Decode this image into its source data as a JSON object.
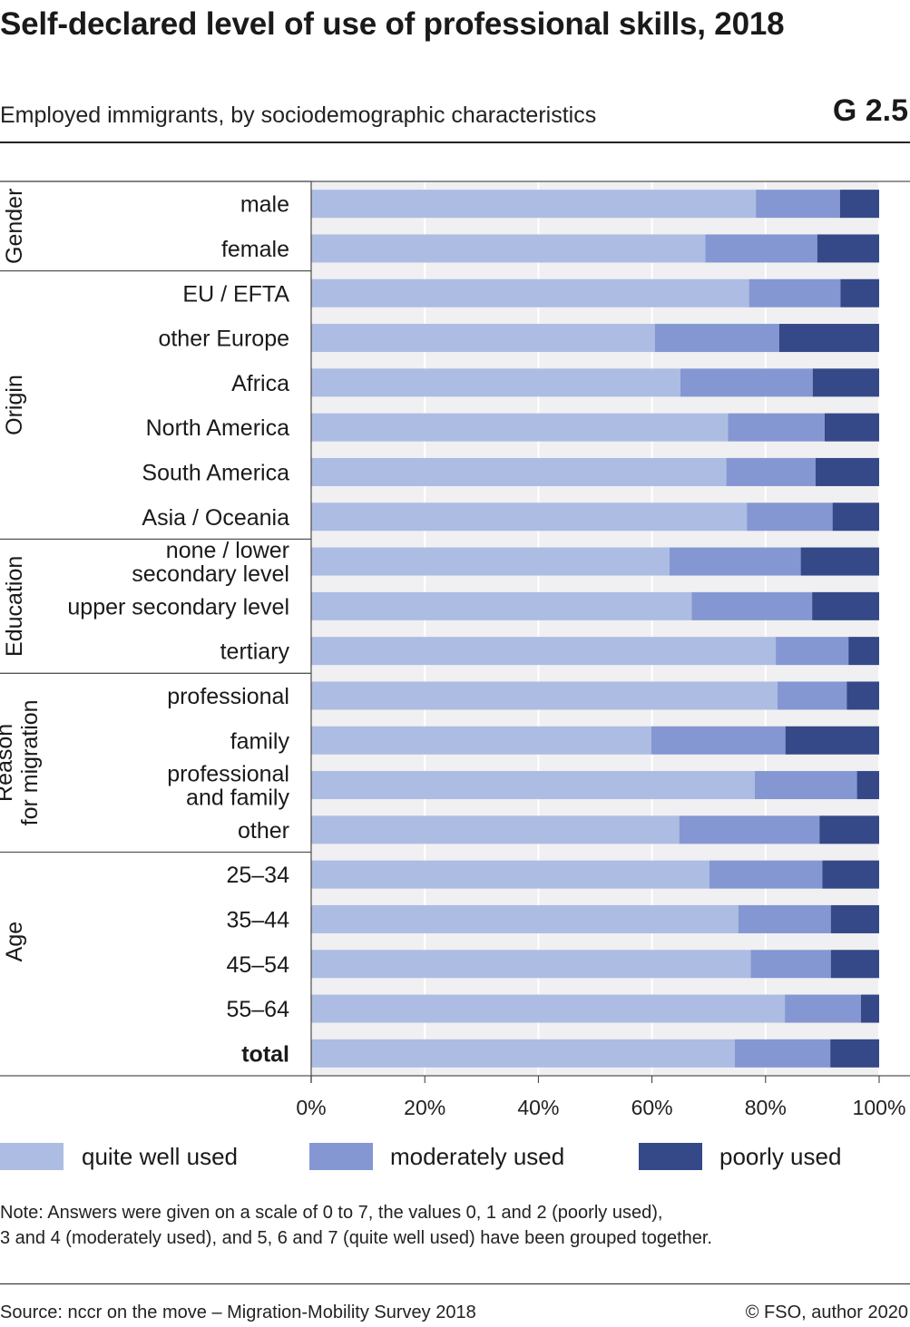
{
  "header": {
    "title": "Self-declared level of use of professional skills, 2018",
    "subtitle": "Employed immigrants, by sociodemographic characteristics",
    "chart_id": "G 2.5"
  },
  "colors": {
    "quite_well_used": "#adbce3",
    "moderately_used": "#8597d2",
    "poorly_used": "#354888",
    "plot_background": "#f0f0f2",
    "gridline": "#ffffff"
  },
  "legend": {
    "items": [
      {
        "label": "quite well used",
        "color": "#adbce3"
      },
      {
        "label": "moderately used",
        "color": "#8597d2"
      },
      {
        "label": "poorly used",
        "color": "#354888"
      }
    ]
  },
  "chart_data": {
    "type": "bar",
    "orientation": "horizontal",
    "stacked": true,
    "xlim": [
      0,
      100
    ],
    "x_ticks": [
      "0%",
      "20%",
      "40%",
      "60%",
      "80%",
      "100%"
    ],
    "grid": true,
    "legend_position": "bottom",
    "groups": [
      {
        "name": "Gender",
        "categories": [
          "male",
          "female"
        ]
      },
      {
        "name": "Origin",
        "categories": [
          "EU/EFTA",
          "other Europe",
          "Africa",
          "North America",
          "South America",
          "Asia/Oceania"
        ]
      },
      {
        "name": "Education",
        "categories": [
          "none/lower secondary level",
          "upper secondary level",
          "tertiary"
        ]
      },
      {
        "name": "Reason for migration",
        "categories": [
          "professional",
          "family",
          "professional and family",
          "other"
        ]
      },
      {
        "name": "Age",
        "categories": [
          "25–34",
          "35–44",
          "45–54",
          "55–64"
        ]
      },
      {
        "name": "",
        "categories": [
          "total"
        ]
      }
    ],
    "categories": [
      "male",
      "female",
      "EU/EFTA",
      "other Europe",
      "Africa",
      "North America",
      "South America",
      "Asia/Oceania",
      "none/lower secondary level",
      "upper secondary level",
      "tertiary",
      "professional",
      "family",
      "professional and family",
      "other",
      "25–34",
      "35–44",
      "45–54",
      "55–64",
      "total"
    ],
    "series": [
      {
        "name": "quite well used",
        "values": [
          78.3,
          69.4,
          77.1,
          60.5,
          65.0,
          73.4,
          73.1,
          76.7,
          63.1,
          67.0,
          81.8,
          82.1,
          59.9,
          78.1,
          64.8,
          70.1,
          75.2,
          77.4,
          83.4,
          74.6
        ]
      },
      {
        "name": "moderately used",
        "values": [
          14.8,
          19.7,
          16.1,
          21.9,
          23.3,
          17.0,
          15.7,
          15.1,
          23.1,
          21.2,
          12.8,
          12.2,
          23.6,
          18.0,
          24.7,
          19.9,
          16.3,
          14.1,
          13.4,
          16.8
        ]
      },
      {
        "name": "poorly used",
        "values": [
          6.9,
          10.9,
          6.8,
          17.6,
          11.7,
          9.6,
          11.2,
          8.2,
          13.8,
          11.8,
          5.4,
          5.7,
          16.5,
          3.9,
          10.5,
          10.0,
          8.5,
          8.5,
          3.2,
          8.6
        ]
      }
    ]
  },
  "footer": {
    "note_line1": "Note: Answers were given on a scale of 0 to 7, the values 0, 1 and 2 (poorly used),",
    "note_line2": "3 and 4 (moderately used), and 5, 6 and 7 (quite well used) have been grouped together.",
    "source": "Source: nccr on the move – Migration-Mobility Survey 2018",
    "credit": "© FSO, author 2020"
  }
}
